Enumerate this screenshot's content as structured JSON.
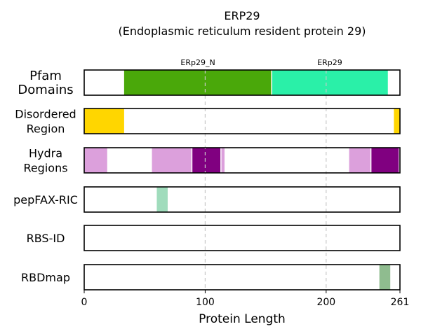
{
  "chart_data": {
    "type": "bar",
    "title": "ERP29",
    "subtitle": "(Endoplasmic reticulum resident protein 29)",
    "xlabel": "Protein Length",
    "xlim": [
      0,
      261
    ],
    "xticks": [
      0,
      100,
      200,
      261
    ],
    "gridlines_at": [
      100,
      200
    ],
    "rows": [
      {
        "label": "Pfam\nDomains",
        "segments": [
          {
            "start": 33,
            "end": 155,
            "color": "#4aa80a",
            "label": "ERp29_N"
          },
          {
            "start": 155,
            "end": 251,
            "color": "#2af0a8",
            "label": "ERp29"
          }
        ]
      },
      {
        "label": "Disordered\nRegion",
        "segments": [
          {
            "start": 0,
            "end": 33,
            "color": "#ffd600"
          },
          {
            "start": 256,
            "end": 261,
            "color": "#ffd600"
          }
        ]
      },
      {
        "label": "Hydra\nRegions",
        "segments": [
          {
            "start": 0,
            "end": 19,
            "color": "#dca0dc"
          },
          {
            "start": 56,
            "end": 89,
            "color": "#dca0dc"
          },
          {
            "start": 89,
            "end": 113,
            "color": "#800080"
          },
          {
            "start": 113,
            "end": 116,
            "color": "#dca0dc"
          },
          {
            "start": 219,
            "end": 237,
            "color": "#dca0dc"
          },
          {
            "start": 237,
            "end": 260,
            "color": "#800080"
          }
        ]
      },
      {
        "label": "pepFAX-RIC",
        "segments": [
          {
            "start": 60,
            "end": 69,
            "color": "#a0dcbc"
          }
        ]
      },
      {
        "label": "RBS-ID",
        "segments": []
      },
      {
        "label": "RBDmap",
        "segments": [
          {
            "start": 244,
            "end": 253,
            "color": "#8fbc8f"
          }
        ]
      }
    ]
  }
}
